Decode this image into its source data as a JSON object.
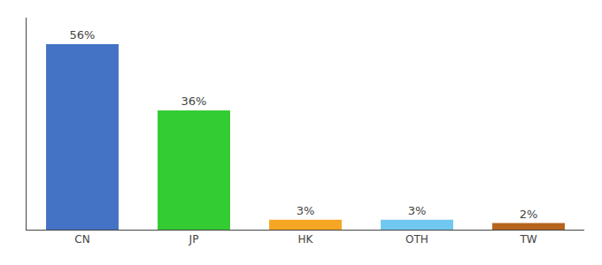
{
  "chart_data": {
    "type": "bar",
    "categories": [
      "CN",
      "JP",
      "HK",
      "OTH",
      "TW"
    ],
    "values": [
      56,
      36,
      3,
      3,
      2
    ],
    "value_labels": [
      "56%",
      "36%",
      "3%",
      "3%",
      "2%"
    ],
    "colors": [
      "#4472c4",
      "#33cc33",
      "#f5a623",
      "#70c8f0",
      "#b5651d"
    ],
    "ylim": [
      0,
      64
    ],
    "grid": false,
    "data_labels": true,
    "tick_labels": "x"
  }
}
